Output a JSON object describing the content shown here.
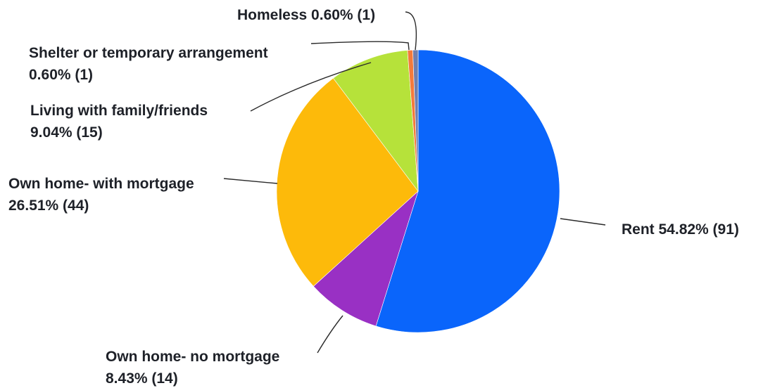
{
  "chart_data": {
    "type": "pie",
    "slices": [
      {
        "category": "Rent",
        "percent_label": "54.82%",
        "count_label": "(91)",
        "percent": 54.82,
        "count": 91,
        "color": "#0a65fb"
      },
      {
        "category": "Own home- no mortgage",
        "percent_label": "8.43%",
        "count_label": "(14)",
        "percent": 8.43,
        "count": 14,
        "color": "#9930c4"
      },
      {
        "category": "Own home- with mortgage",
        "percent_label": "26.51%",
        "count_label": "(44)",
        "percent": 26.51,
        "count": 44,
        "color": "#fdba0a"
      },
      {
        "category": "Living with family/friends",
        "percent_label": "9.04%",
        "count_label": "(15)",
        "percent": 9.04,
        "count": 15,
        "color": "#b6e23a"
      },
      {
        "category": "Shelter or temporary arrangement",
        "percent_label": "0.60%",
        "count_label": "(1)",
        "percent": 0.6,
        "count": 1,
        "color": "#f37a3c"
      },
      {
        "category": "Homeless",
        "percent_label": "0.60%",
        "count_label": "(1)",
        "percent": 0.6,
        "count": 1,
        "color": "#6f7fae"
      }
    ],
    "direction": "clockwise",
    "start": "12 o'clock"
  }
}
